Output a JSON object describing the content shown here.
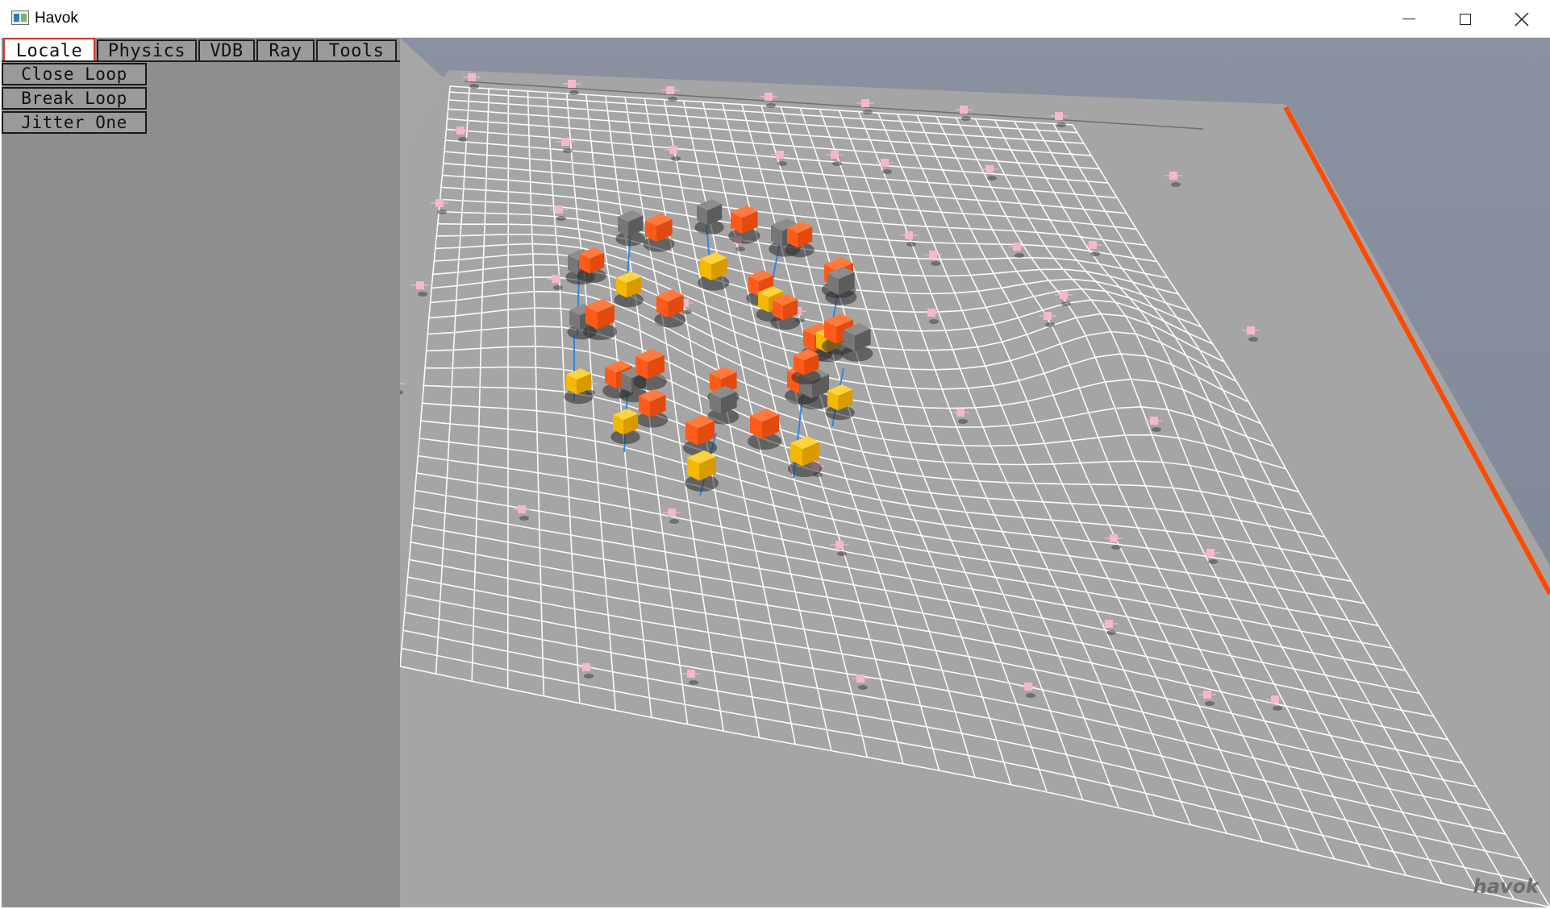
{
  "window": {
    "title": "Havok",
    "icon": "app-icon",
    "controls": [
      "minimize-icon",
      "maximize-icon",
      "close-icon"
    ]
  },
  "tabs": [
    {
      "label": "Locale",
      "active": true
    },
    {
      "label": "Physics",
      "active": false
    },
    {
      "label": "VDB",
      "active": false
    },
    {
      "label": "Ray",
      "active": false
    },
    {
      "label": "Tools",
      "active": false
    }
  ],
  "actions": [
    {
      "label": "Close Loop"
    },
    {
      "label": "Break Loop"
    },
    {
      "label": "Jitter One"
    }
  ],
  "viewport": {
    "logo": "havok",
    "colors": {
      "background": "#858c9b",
      "ground": "#a5a5a5",
      "grid": "#ffffff",
      "edge_accent": "#ff4a00",
      "box_orange": "#ff4f12",
      "box_gray": "#6e6e6e",
      "box_yellow": "#f4b800",
      "constraint_line": "#2f86e0",
      "marker_pink": "#f4b8c8"
    }
  }
}
